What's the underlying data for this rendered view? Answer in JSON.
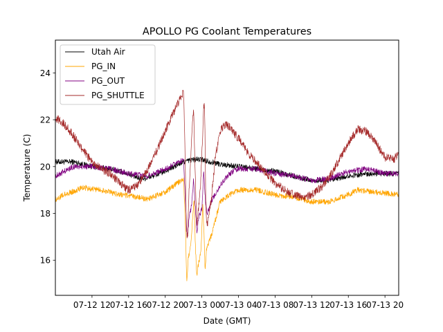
{
  "chart_data": {
    "type": "line",
    "title": "APOLLO PG Coolant Temperatures",
    "xlabel": "Date (GMT)",
    "ylabel": "Temperature (C)",
    "x_unit": "hours since 2000-07-12 08:00 GMT",
    "xlim": [
      0,
      37.5
    ],
    "ylim": [
      14.5,
      25.4
    ],
    "xticks": [
      {
        "x": 4,
        "label": "07-12 12"
      },
      {
        "x": 8,
        "label": "07-12 16"
      },
      {
        "x": 12,
        "label": "07-12 20"
      },
      {
        "x": 16,
        "label": "07-13 00"
      },
      {
        "x": 20,
        "label": "07-13 04"
      },
      {
        "x": 24,
        "label": "07-13 08"
      },
      {
        "x": 28,
        "label": "07-13 12"
      },
      {
        "x": 32,
        "label": "07-13 16"
      },
      {
        "x": 36,
        "label": "07-13 20"
      }
    ],
    "yticks": [
      16,
      18,
      20,
      22,
      24
    ],
    "legend_position": "upper-left",
    "series": [
      {
        "name": "Utah Air",
        "color": "#000000",
        "noise": 0.12,
        "points": [
          [
            0,
            20.2
          ],
          [
            2,
            20.2
          ],
          [
            4,
            20.0
          ],
          [
            6,
            19.9
          ],
          [
            8,
            19.7
          ],
          [
            9,
            19.5
          ],
          [
            10,
            19.5
          ],
          [
            12,
            19.8
          ],
          [
            14,
            20.2
          ],
          [
            15,
            20.3
          ],
          [
            16,
            20.3
          ],
          [
            18,
            20.1
          ],
          [
            20,
            20.0
          ],
          [
            22,
            19.9
          ],
          [
            24,
            19.8
          ],
          [
            26,
            19.6
          ],
          [
            28,
            19.4
          ],
          [
            30,
            19.4
          ],
          [
            32,
            19.6
          ],
          [
            34,
            19.7
          ],
          [
            36,
            19.7
          ],
          [
            37.5,
            19.7
          ]
        ]
      },
      {
        "name": "PG_IN",
        "color": "#ffa500",
        "noise": 0.12,
        "points": [
          [
            0,
            18.6
          ],
          [
            1,
            18.8
          ],
          [
            3,
            19.1
          ],
          [
            5,
            19.0
          ],
          [
            7,
            18.8
          ],
          [
            9,
            18.7
          ],
          [
            10,
            18.6
          ],
          [
            12,
            18.9
          ],
          [
            13,
            19.2
          ],
          [
            14,
            19.5
          ],
          [
            14.2,
            17.5
          ],
          [
            14.35,
            15.0
          ],
          [
            14.5,
            16.0
          ],
          [
            14.8,
            16.8
          ],
          [
            15.0,
            17.8
          ],
          [
            15.15,
            18.6
          ],
          [
            15.3,
            16.5
          ],
          [
            15.45,
            15.3
          ],
          [
            15.6,
            15.8
          ],
          [
            15.9,
            16.3
          ],
          [
            16.1,
            18.5
          ],
          [
            16.25,
            17.0
          ],
          [
            16.35,
            15.6
          ],
          [
            16.5,
            16.5
          ],
          [
            17,
            17.0
          ],
          [
            18,
            18.5
          ],
          [
            19,
            18.8
          ],
          [
            20,
            19.0
          ],
          [
            22,
            19.0
          ],
          [
            24,
            18.8
          ],
          [
            26,
            18.7
          ],
          [
            28,
            18.5
          ],
          [
            30,
            18.5
          ],
          [
            32,
            18.8
          ],
          [
            33,
            19.0
          ],
          [
            35,
            18.9
          ],
          [
            37.5,
            18.8
          ]
        ]
      },
      {
        "name": "PG_OUT",
        "color": "#800080",
        "noise": 0.12,
        "points": [
          [
            0,
            19.6
          ],
          [
            2,
            20.0
          ],
          [
            4,
            20.0
          ],
          [
            6,
            19.9
          ],
          [
            8,
            19.7
          ],
          [
            10,
            19.6
          ],
          [
            12,
            19.9
          ],
          [
            14,
            20.3
          ],
          [
            14.2,
            18.5
          ],
          [
            14.4,
            16.9
          ],
          [
            14.6,
            17.8
          ],
          [
            14.9,
            18.4
          ],
          [
            15.1,
            19.5
          ],
          [
            15.25,
            18.5
          ],
          [
            15.45,
            17.2
          ],
          [
            15.65,
            17.8
          ],
          [
            16.0,
            18.2
          ],
          [
            16.2,
            19.8
          ],
          [
            16.4,
            18.5
          ],
          [
            16.6,
            18.0
          ],
          [
            17,
            18.5
          ],
          [
            18,
            19.2
          ],
          [
            19,
            19.7
          ],
          [
            20,
            19.9
          ],
          [
            22,
            19.9
          ],
          [
            24,
            19.7
          ],
          [
            26,
            19.6
          ],
          [
            28,
            19.4
          ],
          [
            30,
            19.5
          ],
          [
            32,
            19.8
          ],
          [
            34,
            19.9
          ],
          [
            36,
            19.7
          ],
          [
            37.5,
            19.7
          ]
        ]
      },
      {
        "name": "PG_SHUTTLE",
        "color": "#a52a2a",
        "noise": 0.18,
        "points": [
          [
            0,
            22.1
          ],
          [
            1,
            21.8
          ],
          [
            2,
            21.3
          ],
          [
            3,
            20.7
          ],
          [
            4,
            20.2
          ],
          [
            5,
            19.9
          ],
          [
            6,
            19.7
          ],
          [
            7,
            19.3
          ],
          [
            8,
            19.0
          ],
          [
            9,
            19.2
          ],
          [
            10,
            19.8
          ],
          [
            11,
            20.6
          ],
          [
            12,
            21.5
          ],
          [
            13,
            22.4
          ],
          [
            14,
            23.2
          ],
          [
            14.15,
            21.0
          ],
          [
            14.3,
            17.2
          ],
          [
            14.45,
            17.0
          ],
          [
            14.6,
            19.0
          ],
          [
            15.0,
            22.0
          ],
          [
            15.1,
            22.5
          ],
          [
            15.25,
            20.0
          ],
          [
            15.45,
            17.5
          ],
          [
            15.6,
            18.0
          ],
          [
            15.9,
            19.5
          ],
          [
            16.2,
            22.5
          ],
          [
            16.3,
            22.6
          ],
          [
            16.45,
            18.0
          ],
          [
            16.6,
            17.5
          ],
          [
            17,
            18.5
          ],
          [
            17.5,
            20.5
          ],
          [
            18,
            21.5
          ],
          [
            18.5,
            21.8
          ],
          [
            19,
            21.7
          ],
          [
            20,
            21.2
          ],
          [
            21,
            20.6
          ],
          [
            22,
            20.2
          ],
          [
            23,
            19.7
          ],
          [
            24,
            19.3
          ],
          [
            25,
            19.0
          ],
          [
            26,
            18.8
          ],
          [
            27,
            18.7
          ],
          [
            28,
            18.8
          ],
          [
            29,
            19.1
          ],
          [
            30,
            19.6
          ],
          [
            31,
            20.3
          ],
          [
            32,
            21.0
          ],
          [
            33,
            21.6
          ],
          [
            34,
            21.5
          ],
          [
            35,
            21.0
          ],
          [
            36,
            20.4
          ],
          [
            37,
            20.3
          ],
          [
            37.5,
            20.6
          ]
        ]
      }
    ]
  }
}
